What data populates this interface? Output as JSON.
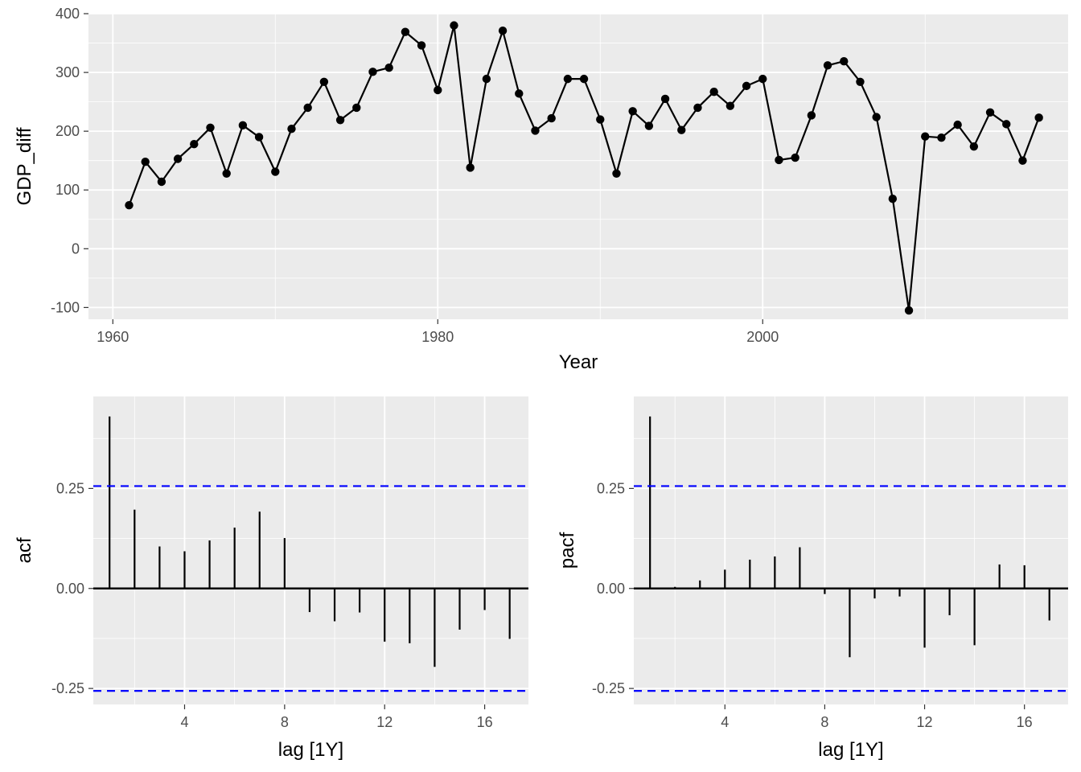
{
  "chart_data": [
    {
      "type": "line",
      "xlabel": "Year",
      "ylabel": "GDP_diff",
      "xlim": [
        1958.5,
        2018.8
      ],
      "ylim": [
        -120,
        400
      ],
      "x_ticks": [
        1960,
        1980,
        2000
      ],
      "y_ticks": [
        -100,
        0,
        100,
        200,
        300,
        400
      ],
      "x_minor_ticks": [
        1970,
        1990,
        2010
      ],
      "y_minor_ticks": [
        -50,
        50,
        150,
        250,
        350
      ],
      "grid": true,
      "markers": true,
      "series": [
        {
          "x": [
            1961,
            1962,
            1963,
            1964,
            1965,
            1966,
            1967,
            1968,
            1969,
            1970,
            1971,
            1972,
            1973,
            1974,
            1975,
            1976,
            1977,
            1978,
            1979,
            1980,
            1981,
            1982,
            1983,
            1984,
            1985,
            1986,
            1987,
            1988,
            1989,
            1990,
            1991,
            1992,
            1993,
            1994,
            1995,
            1996,
            1997,
            1998,
            1999,
            2000,
            2001,
            2002,
            2003,
            2004,
            2005,
            2006,
            2007,
            2008,
            2009,
            2010,
            2011,
            2012,
            2013,
            2014,
            2015,
            2016,
            2017
          ],
          "values": [
            74,
            148,
            114,
            153,
            178,
            206,
            128,
            210,
            190,
            131,
            204,
            240,
            284,
            219,
            240,
            301,
            308,
            369,
            346,
            270,
            380,
            138,
            289,
            371,
            264,
            201,
            222,
            289,
            289,
            220,
            128,
            234,
            209,
            255,
            202,
            240,
            267,
            243,
            277,
            289,
            151,
            155,
            227,
            312,
            319,
            284,
            224,
            85,
            -105,
            191,
            189,
            211,
            174,
            232,
            212,
            150,
            223
          ]
        }
      ]
    },
    {
      "type": "bar",
      "xlabel": "lag [1Y]",
      "ylabel": "acf",
      "xlim": [
        0.35,
        17.75
      ],
      "ylim": [
        -0.29,
        0.48
      ],
      "x_ticks": [
        4,
        8,
        12,
        16
      ],
      "x_tick_labels": [
        "4",
        "8",
        "12",
        "16"
      ],
      "y_ticks": [
        -0.25,
        0,
        0.25
      ],
      "y_tick_labels": [
        "-0.25",
        "0.00",
        "0.25"
      ],
      "x_minor_ticks": [
        2,
        6,
        10,
        14
      ],
      "y_minor_ticks": [
        -0.125,
        0.125,
        0.375
      ],
      "grid": true,
      "significance_bounds": [
        0.256,
        -0.256
      ],
      "bound_color": "#0000ff",
      "categories": [
        1,
        2,
        3,
        4,
        5,
        6,
        7,
        8,
        9,
        10,
        11,
        12,
        13,
        14,
        15,
        16,
        17
      ],
      "values": [
        0.43,
        0.197,
        0.105,
        0.093,
        0.12,
        0.152,
        0.192,
        0.126,
        -0.059,
        -0.082,
        -0.06,
        -0.133,
        -0.137,
        -0.196,
        -0.103,
        -0.054,
        -0.126
      ]
    },
    {
      "type": "bar",
      "xlabel": "lag [1Y]",
      "ylabel": "pacf",
      "xlim": [
        0.35,
        17.75
      ],
      "ylim": [
        -0.29,
        0.48
      ],
      "x_ticks": [
        4,
        8,
        12,
        16
      ],
      "x_tick_labels": [
        "4",
        "8",
        "12",
        "16"
      ],
      "y_ticks": [
        -0.25,
        0,
        0.25
      ],
      "y_tick_labels": [
        "-0.25",
        "0.00",
        "0.25"
      ],
      "x_minor_ticks": [
        2,
        6,
        10,
        14
      ],
      "y_minor_ticks": [
        -0.125,
        0.125,
        0.375
      ],
      "grid": true,
      "significance_bounds": [
        0.256,
        -0.256
      ],
      "bound_color": "#0000ff",
      "categories": [
        1,
        2,
        3,
        4,
        5,
        6,
        7,
        8,
        9,
        10,
        11,
        12,
        13,
        14,
        15,
        16,
        17
      ],
      "values": [
        0.43,
        0.004,
        0.02,
        0.047,
        0.072,
        0.08,
        0.103,
        -0.014,
        -0.172,
        -0.025,
        -0.02,
        -0.148,
        -0.067,
        -0.142,
        0.06,
        0.058,
        -0.08
      ]
    }
  ]
}
